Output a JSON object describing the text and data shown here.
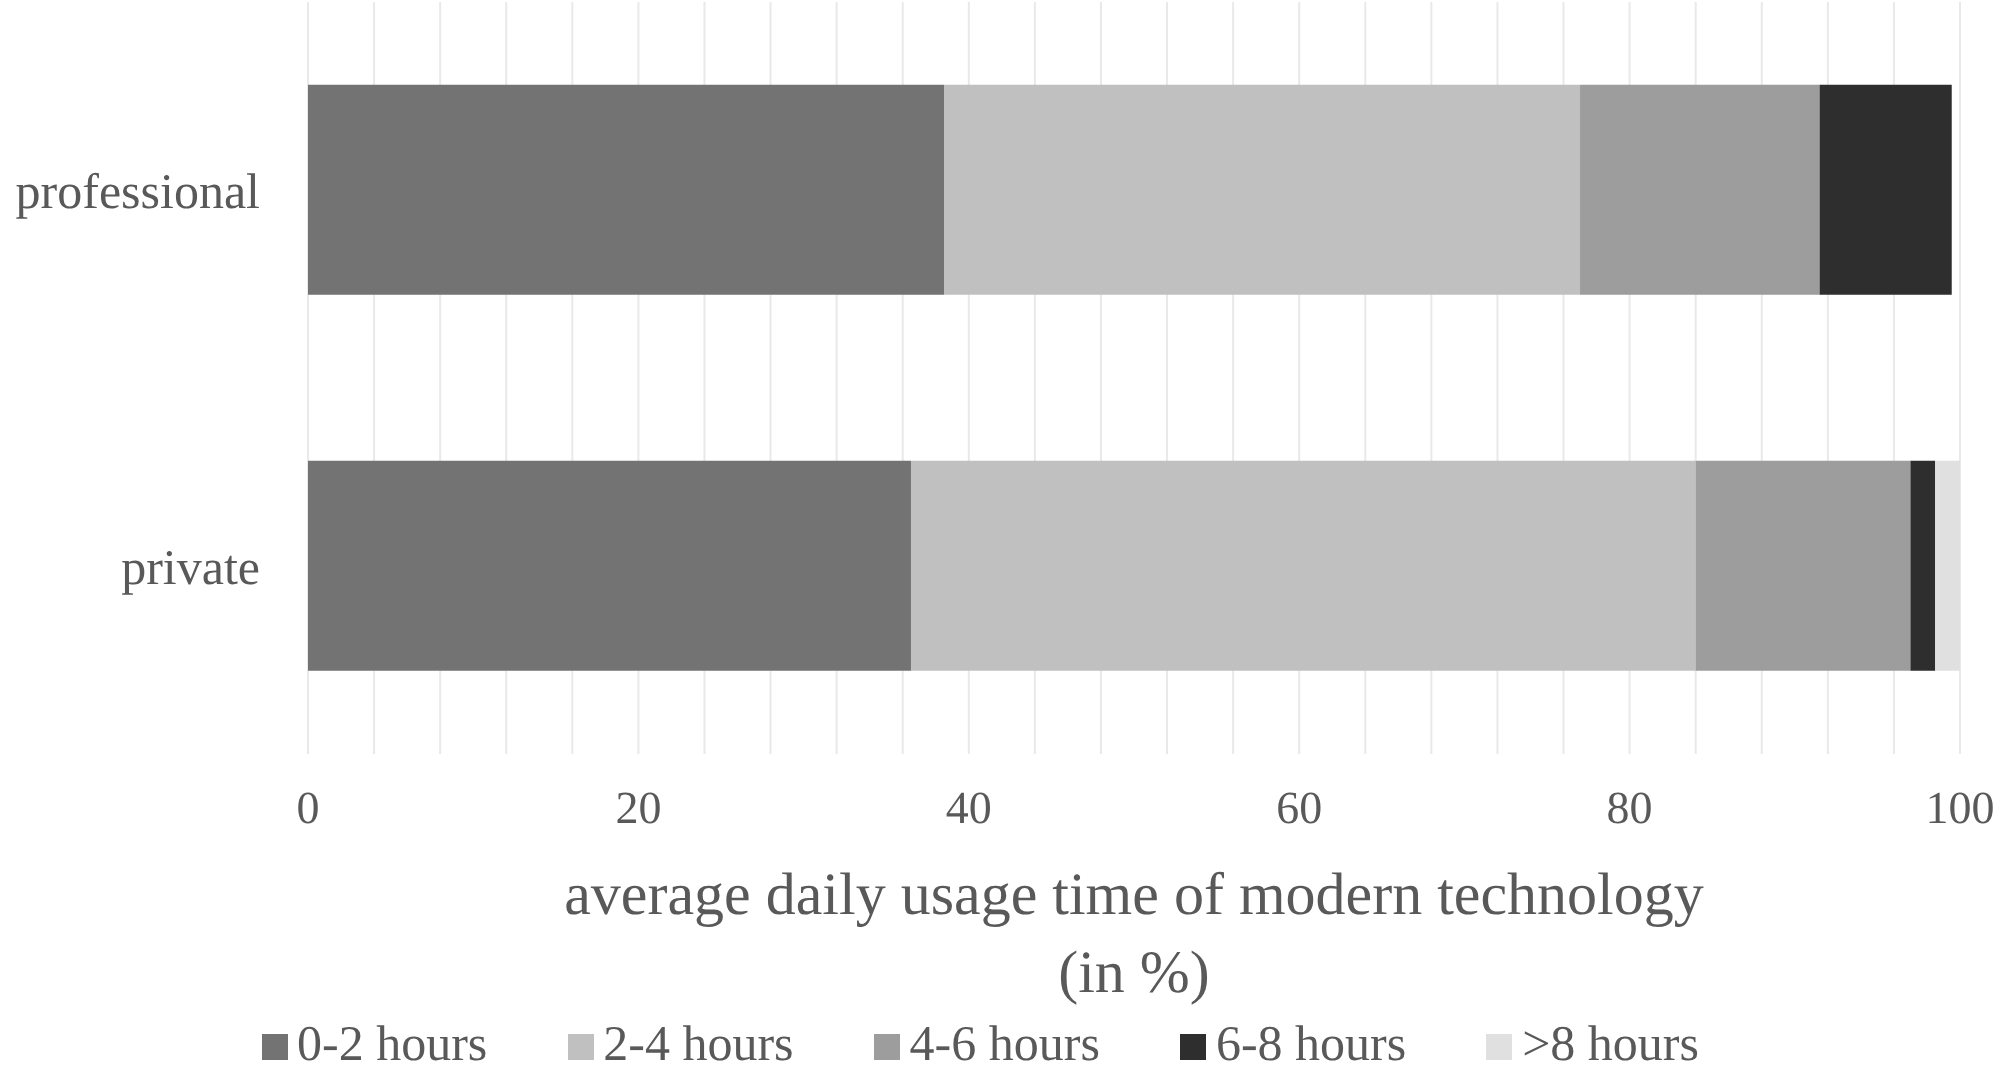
{
  "chart_data": {
    "type": "bar",
    "orientation": "horizontal",
    "stacked": true,
    "xlabel": "average daily usage time of modern technology\n(in %)",
    "categories": [
      "professional",
      "private"
    ],
    "series": [
      {
        "name": "0-2 hours",
        "color": "#737373",
        "values": [
          38.5,
          36.5
        ]
      },
      {
        "name": "2-4 hours",
        "color": "#c0c0c0",
        "values": [
          38.5,
          47.5
        ]
      },
      {
        "name": "4-6 hours",
        "color": "#9d9d9d",
        "values": [
          14.5,
          13
        ]
      },
      {
        "name": "6-8 hours",
        "color": "#2e2e2e",
        "values": [
          8,
          1.5
        ]
      },
      {
        "name": ">8 hours",
        "color": "#e0e0e0",
        "values": [
          0,
          1.5
        ]
      }
    ],
    "xlim": [
      0,
      100
    ],
    "xticks": [
      0,
      {
        "value": 4,
        "label": null
      },
      {
        "value": 8,
        "label": null
      },
      {
        "value": 12,
        "label": null
      },
      {
        "value": 16,
        "label": null
      },
      20,
      {
        "value": 24,
        "label": null
      },
      {
        "value": 28,
        "label": null
      },
      {
        "value": 32,
        "label": null
      },
      {
        "value": 36,
        "label": null
      },
      40,
      {
        "value": 44,
        "label": null
      },
      {
        "value": 48,
        "label": null
      },
      {
        "value": 52,
        "label": null
      },
      {
        "value": 56,
        "label": null
      },
      60,
      {
        "value": 64,
        "label": null
      },
      {
        "value": 68,
        "label": null
      },
      {
        "value": 72,
        "label": null
      },
      {
        "value": 76,
        "label": null
      },
      80,
      {
        "value": 84,
        "label": null
      },
      {
        "value": 88,
        "label": null
      },
      {
        "value": 92,
        "label": null
      },
      {
        "value": 96,
        "label": null
      },
      100
    ],
    "grid": "x",
    "legend": "bottom"
  }
}
